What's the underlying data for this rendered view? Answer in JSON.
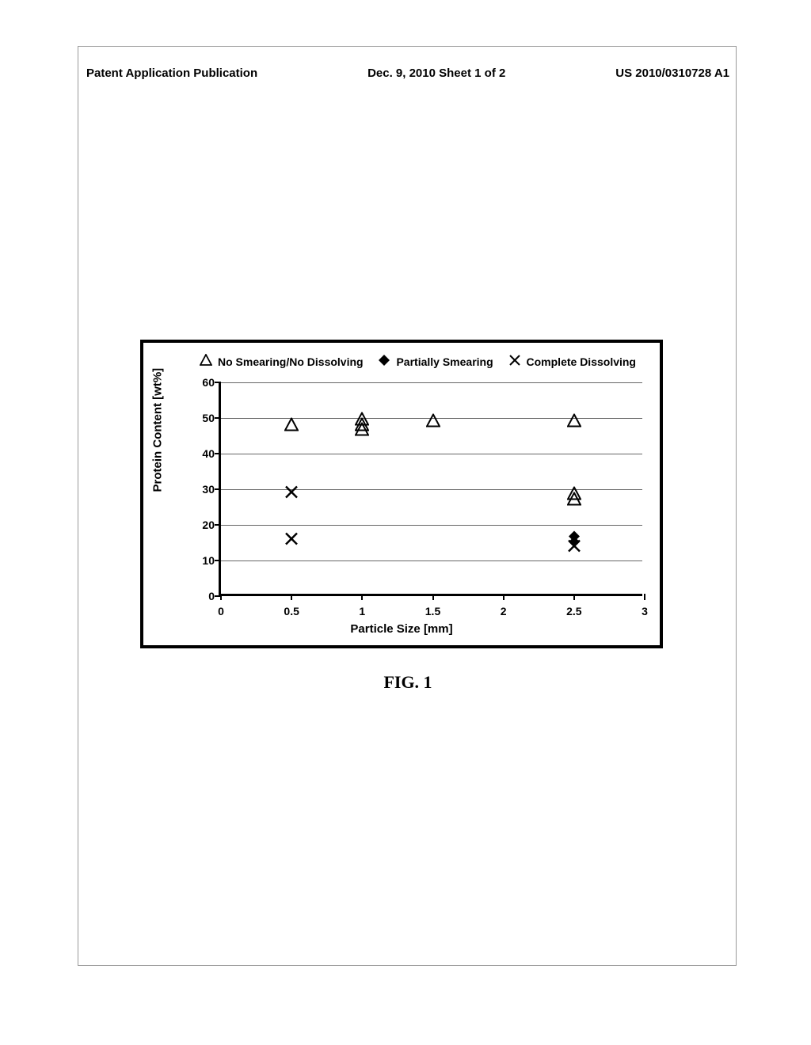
{
  "header": {
    "left": "Patent Application Publication",
    "center": "Dec. 9, 2010  Sheet 1 of 2",
    "right": "US 2010/0310728 A1"
  },
  "caption": "FIG. 1",
  "chart": {
    "type": "scatter",
    "xlabel": "Particle Size  [mm]",
    "ylabel": "Protein Content [wt%]",
    "xlim": [
      0,
      3
    ],
    "ylim": [
      0,
      60
    ],
    "xticks": [
      0,
      0.5,
      1,
      1.5,
      2,
      2.5,
      3
    ],
    "yticks": [
      0,
      10,
      20,
      30,
      40,
      50,
      60
    ],
    "ytick_step": 10,
    "grid_color": "#666666",
    "border_color": "#000000",
    "background_color": "#ffffff",
    "label_fontsize": 15,
    "tick_fontsize": 14,
    "legend_fontsize": 14,
    "series": [
      {
        "name": "No Smearing/No Dissolving",
        "marker": "triangle-open",
        "color": "#000000",
        "points": [
          {
            "x": 0.5,
            "y": 47
          },
          {
            "x": 1.0,
            "y": 47
          },
          {
            "x": 1.0,
            "y": 48.5
          },
          {
            "x": 1.0,
            "y": 45.5
          },
          {
            "x": 1.5,
            "y": 48
          },
          {
            "x": 2.5,
            "y": 48
          },
          {
            "x": 2.5,
            "y": 26
          },
          {
            "x": 2.5,
            "y": 27.5
          }
        ]
      },
      {
        "name": "Partially Smearing",
        "marker": "diamond-filled",
        "color": "#000000",
        "points": [
          {
            "x": 2.5,
            "y": 14
          },
          {
            "x": 2.5,
            "y": 15.5
          }
        ]
      },
      {
        "name": "Complete Dissolving",
        "marker": "x",
        "color": "#000000",
        "points": [
          {
            "x": 0.5,
            "y": 28
          },
          {
            "x": 0.5,
            "y": 15
          },
          {
            "x": 2.5,
            "y": 13
          }
        ]
      }
    ]
  }
}
